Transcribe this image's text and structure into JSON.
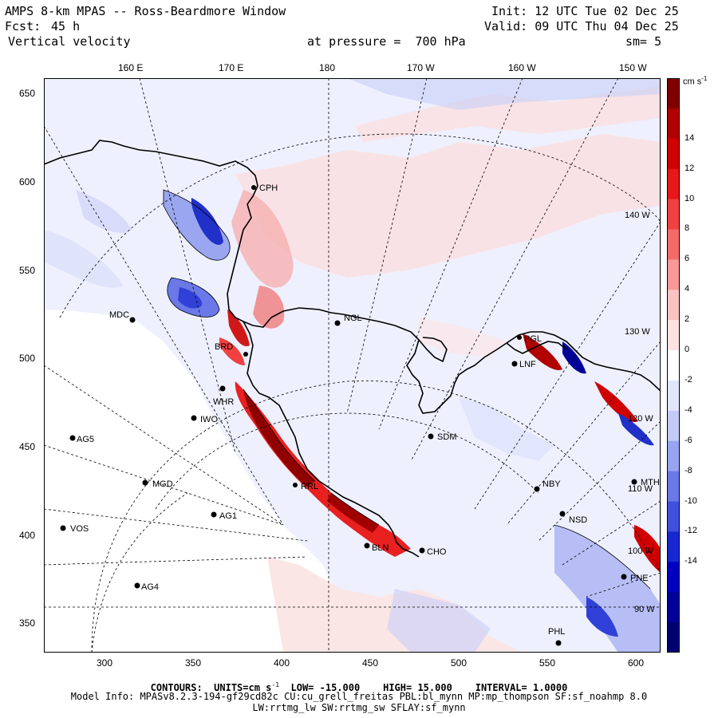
{
  "header": {
    "title": "AMPS 8-km MPAS -- Ross-Beardmore Window",
    "init": "Init: 12 UTC Tue 02 Dec 25",
    "fcst_label": "Fcst:",
    "fcst_value": "45 h",
    "valid": "Valid: 09 UTC Thu 04 Dec 25",
    "field": "Vertical velocity",
    "pressure": "at pressure =  700 hPa",
    "smooth": "sm= 5"
  },
  "top_ticks": [
    "160 E",
    "170 E",
    "180",
    "170 W",
    "160 W",
    "150 W"
  ],
  "left_ticks": [
    "650",
    "600",
    "550",
    "500",
    "450",
    "400",
    "350"
  ],
  "bottom_ticks": [
    "300",
    "350",
    "400",
    "450",
    "500",
    "550",
    "600"
  ],
  "meridian_labels": [
    "140 W",
    "130 W",
    "120 W",
    "110 W",
    "100 W",
    "90 W"
  ],
  "stations": [
    "CPH",
    "NGL",
    "MDC",
    "BRD",
    "WHR",
    "IWO",
    "AG5",
    "MGD",
    "AG1",
    "VOS",
    "AG4",
    "SDM",
    "BLN",
    "CHO",
    "NBY",
    "NSD",
    "PNE",
    "PHL",
    "MTH",
    "LNF",
    "RRL",
    "PGL"
  ],
  "colorbar": {
    "unit": "cm s",
    "unit_exp": "-1",
    "labels": [
      "14",
      "12",
      "10",
      "8",
      "6",
      "4",
      "2",
      "0",
      "-2",
      "-4",
      "-6",
      "-8",
      "-10",
      "-12",
      "-14"
    ],
    "colors": [
      "#800000",
      "#b00000",
      "#d00000",
      "#e81818",
      "#f04040",
      "#f46a6a",
      "#f89898",
      "#fbc2c2",
      "#fde2e2",
      "#ffffff",
      "#e2e6fd",
      "#c2caf8",
      "#98a4f0",
      "#6a78e8",
      "#4050dd",
      "#1828d0",
      "#0000c0",
      "#000098",
      "#000070"
    ]
  },
  "footer": {
    "contours_label": "CONTOURS:",
    "units_label": "UNITS=cm s",
    "units_exp": "-1",
    "low": "LOW= -15.000",
    "high": "HIGH= 15.000",
    "interval": "INTERVAL= 1.0000",
    "model_info": "Model Info: MPASv8.2.3-194-gf29cd82c CU:cu_grell_freitas PBL:bl_mynn MP:mp_thompson SF:sf_noahmp 8.0",
    "model_info2": "LW:rrtmg_lw SW:rrtmg_sw SFLAY:sf_mynn"
  }
}
